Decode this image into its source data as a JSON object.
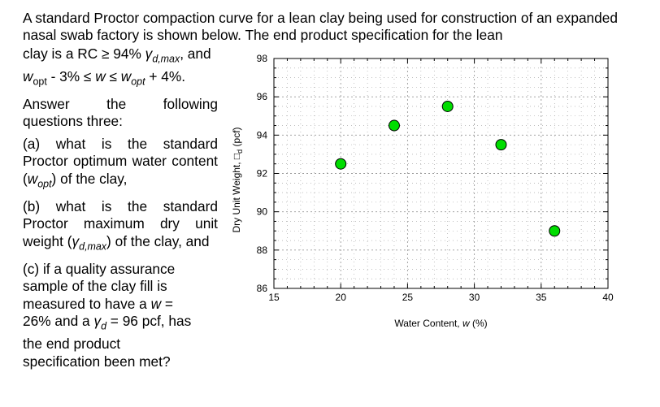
{
  "problem": {
    "intro": "A standard Proctor compaction curve for a lean clay being used for construction of an expanded nasal swab factory is shown below. The end product specification for the lean",
    "spec_line1_pre": "clay is a RC ≥ 94% ",
    "gamma": "γ",
    "sub_dmax": "d,max",
    "spec_line1_post": ", and",
    "w": "w",
    "sub_opt": "opt",
    "spec_line2_a": " - 3% ≤ ",
    "spec_line2_b": " ≤ ",
    "spec_line2_c": " + 4%.",
    "answer_line1": "Answer the following",
    "answer_line2": "questions three:",
    "qa_pre": "(a) what is the standard Proctor optimum water content (",
    "qa_post": ") of the clay,",
    "qb_pre": "(b) what is the standard Proctor maximum dry unit weight (",
    "qb_post": ") of the clay, and",
    "qc_pre": "(c) if a quality assurance sample of the clay fill is measured to have a ",
    "qc_mid": " = 26% and a ",
    "sub_d": "d",
    "qc_post": " = 96 pcf, has the end product specification been met?"
  },
  "chart_data": {
    "type": "scatter",
    "title": "",
    "xlabel": "Water Content, ",
    "xlabel_var": "w",
    "xlabel_unit": " (%)",
    "ylabel": "Dry Unit Weight, □",
    "ylabel_sub": "d",
    "ylabel_unit": " (pcf)",
    "xlim": [
      15,
      40
    ],
    "ylim": [
      86,
      98
    ],
    "xticks": [
      15,
      20,
      25,
      30,
      35,
      40
    ],
    "yticks": [
      86,
      88,
      90,
      92,
      94,
      96,
      98
    ],
    "grid": true,
    "legend": "none",
    "x": [
      20,
      24,
      28,
      32,
      36
    ],
    "y": [
      92.5,
      94.5,
      95.5,
      93.5,
      89
    ],
    "marker_color": "#00dd00",
    "marker_edge_color": "#000000",
    "grid_color": "#999999"
  }
}
